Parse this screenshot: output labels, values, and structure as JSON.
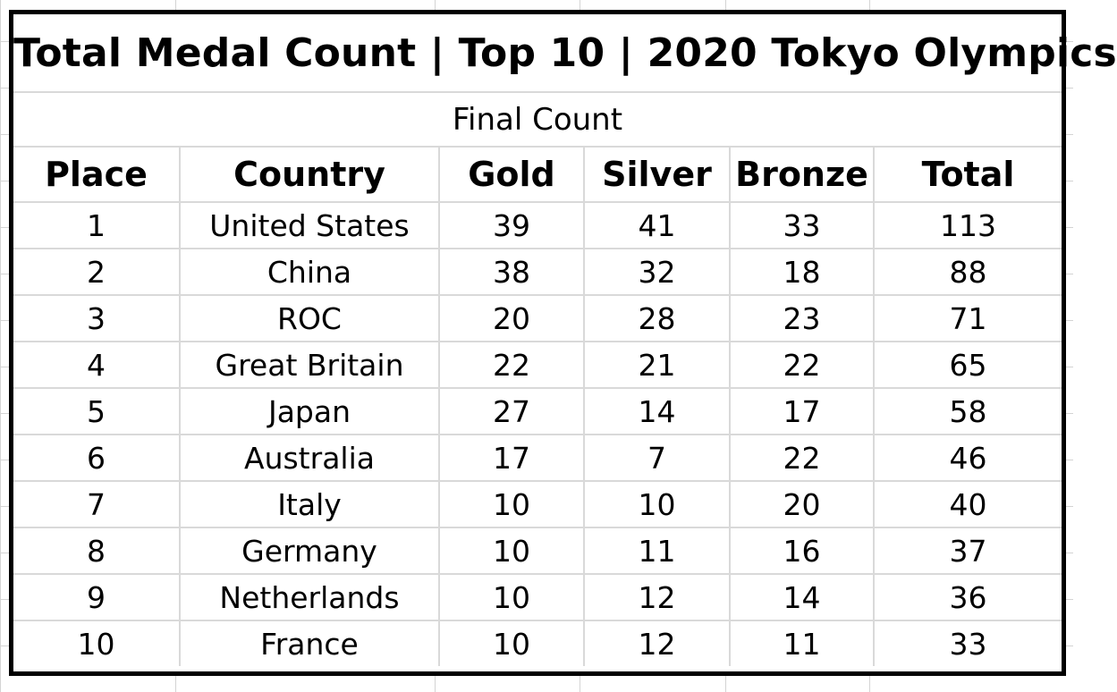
{
  "sheet": {
    "title": "Total Medal Count | Top 10 | 2020 Tokyo Olympics",
    "subtitle": "Final Count",
    "columns": [
      "Place",
      "Country",
      "Gold",
      "Silver",
      "Bronze",
      "Total"
    ],
    "rows": [
      [
        "1",
        "United States",
        "39",
        "41",
        "33",
        "113"
      ],
      [
        "2",
        "China",
        "38",
        "32",
        "18",
        "88"
      ],
      [
        "3",
        "ROC",
        "20",
        "28",
        "23",
        "71"
      ],
      [
        "4",
        "Great Britain",
        "22",
        "21",
        "22",
        "65"
      ],
      [
        "5",
        "Japan",
        "27",
        "14",
        "17",
        "58"
      ],
      [
        "6",
        "Australia",
        "17",
        "7",
        "22",
        "46"
      ],
      [
        "7",
        "Italy",
        "10",
        "10",
        "20",
        "40"
      ],
      [
        "8",
        "Germany",
        "10",
        "11",
        "16",
        "37"
      ],
      [
        "9",
        "Netherlands",
        "10",
        "12",
        "14",
        "36"
      ],
      [
        "10",
        "France",
        "10",
        "12",
        "11",
        "33"
      ]
    ]
  },
  "colors": {
    "border": "#000000",
    "gridline": "#d9d9d9",
    "background": "#ffffff"
  }
}
